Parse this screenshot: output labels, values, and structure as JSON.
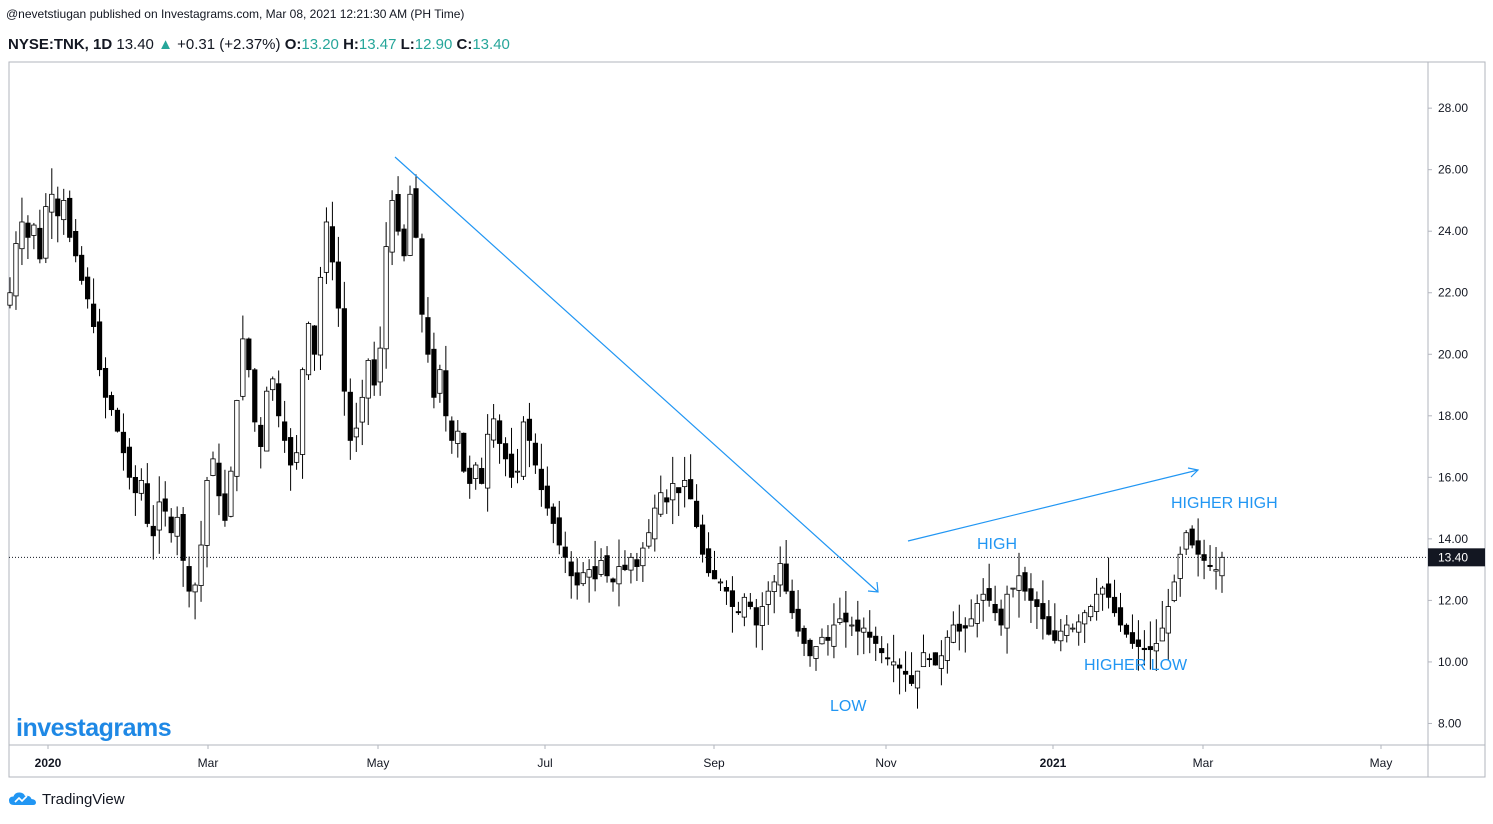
{
  "attribution": "@nevetstiugan published on Investagrams.com, Mar 08, 2021 12:21:30 AM (PH Time)",
  "header": {
    "symbol": "NYSE:TNK, 1D",
    "last": "13.40",
    "arrow": "▲",
    "change": "+0.31 (+2.37%)",
    "o_label": "O:",
    "o": "13.20",
    "h_label": "H:",
    "h": "13.47",
    "l_label": "L:",
    "l": "12.90",
    "c_label": "C:",
    "c": "13.40"
  },
  "brand": "investagrams",
  "footer_logo": "TradingView",
  "colors": {
    "annotation": "#2196f3",
    "candle": "#000000",
    "accent": "#26a69a"
  },
  "chart_data": {
    "type": "candlestick",
    "ylim": [
      7.3,
      29.5
    ],
    "y_ticks": [
      "8.00",
      "10.00",
      "12.00",
      "14.00",
      "16.00",
      "18.00",
      "20.00",
      "22.00",
      "24.00",
      "26.00",
      "28.00"
    ],
    "x_ticks": [
      "2020",
      "Mar",
      "May",
      "Jul",
      "Sep",
      "Nov",
      "2021",
      "Mar",
      "May"
    ],
    "last_price_label": "13.40",
    "last_price": 13.4,
    "closes": [
      22.0,
      23.6,
      24.3,
      23.8,
      24.2,
      23.1,
      24.8,
      25.2,
      24.5,
      25.0,
      23.8,
      23.2,
      22.4,
      21.8,
      20.9,
      19.5,
      18.6,
      18.2,
      17.5,
      16.8,
      16.0,
      15.5,
      15.9,
      14.5,
      14.1,
      15.2,
      14.9,
      14.2,
      14.7,
      13.3,
      12.3,
      12.5,
      13.8,
      15.9,
      16.6,
      15.4,
      14.6,
      16.2,
      18.5,
      20.5,
      19.5,
      17.8,
      17.0,
      18.8,
      19.2,
      18.0,
      17.2,
      16.4,
      16.8,
      19.5,
      21.0,
      20.0,
      22.5,
      24.3,
      23.0,
      21.5,
      18.8,
      17.2,
      17.6,
      18.6,
      19.8,
      19.0,
      20.2,
      23.5,
      25.0,
      24.0,
      23.2,
      25.2,
      23.8,
      21.3,
      20.0,
      18.6,
      19.5,
      18.0,
      17.2,
      17.5,
      16.2,
      15.8,
      16.4,
      15.8,
      17.4,
      17.9,
      17.1,
      16.6,
      16.0,
      16.2,
      17.8,
      17.2,
      16.4,
      15.6,
      15.0,
      14.5,
      13.8,
      13.4,
      12.8,
      12.5,
      12.9,
      13.0,
      12.7,
      13.3,
      12.8,
      12.6,
      13.1,
      13.0,
      13.4,
      13.1,
      13.7,
      14.2,
      15.0,
      15.5,
      15.2,
      15.8,
      15.5,
      15.9,
      15.3,
      14.4,
      13.5,
      12.9,
      12.7,
      12.6,
      12.3,
      11.8,
      11.6,
      12.1,
      11.8,
      11.2,
      11.8,
      12.3,
      12.6,
      13.2,
      12.3,
      11.6,
      11.0,
      10.6,
      10.2,
      10.5,
      10.8,
      10.7,
      11.2,
      11.4,
      11.3,
      11.2,
      11.0,
      11.1,
      10.8,
      10.6,
      10.3,
      10.1,
      10.0,
      9.8,
      9.6,
      9.3,
      9.7,
      10.3,
      10.1,
      9.9,
      10.2,
      10.8,
      11.2,
      11.0,
      11.1,
      11.4,
      11.9,
      12.2,
      12.0,
      11.6,
      11.2,
      12.2,
      12.4,
      12.8,
      12.3,
      12.0,
      11.8,
      11.4,
      10.9,
      10.7,
      11.0,
      11.2,
      11.1,
      11.3,
      11.6,
      11.8,
      12.2,
      12.4,
      12.1,
      11.6,
      11.2,
      10.9,
      10.6,
      10.5,
      10.4,
      10.4,
      10.6,
      11.1,
      11.8,
      12.6,
      13.5,
      14.2,
      13.8,
      13.5,
      13.3,
      13.1,
      13.0,
      13.4
    ]
  }
}
